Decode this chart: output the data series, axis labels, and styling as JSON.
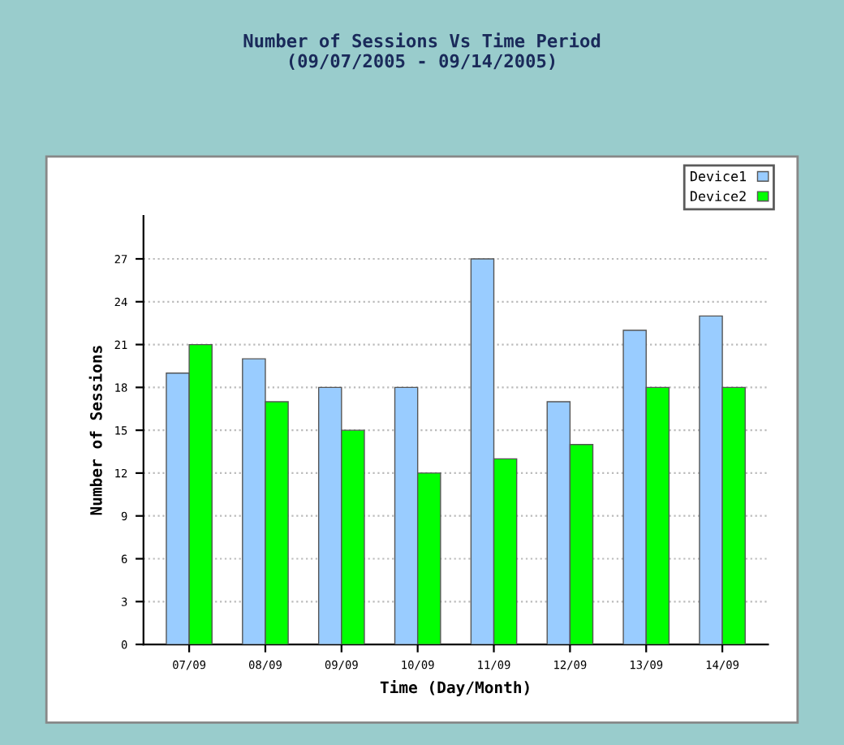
{
  "chart_data": {
    "type": "bar",
    "title": "Number of Sessions Vs Time Period\n(09/07/2005 - 09/14/2005)",
    "xlabel": "Time (Day/Month)",
    "ylabel": "Number of Sessions",
    "categories": [
      "07/09",
      "08/09",
      "09/09",
      "10/09",
      "11/09",
      "12/09",
      "13/09",
      "14/09"
    ],
    "series": [
      {
        "name": "Device1",
        "color": "#99ccff",
        "values": [
          19,
          20,
          18,
          18,
          27,
          17,
          22,
          23
        ]
      },
      {
        "name": "Device2",
        "color": "#00ff00",
        "values": [
          21,
          17,
          15,
          12,
          13,
          14,
          18,
          18
        ]
      }
    ],
    "ylim": [
      0,
      30
    ],
    "yticks": [
      0,
      3,
      6,
      9,
      12,
      15,
      18,
      21,
      24,
      27
    ],
    "grid": "y",
    "legend": "top right"
  }
}
